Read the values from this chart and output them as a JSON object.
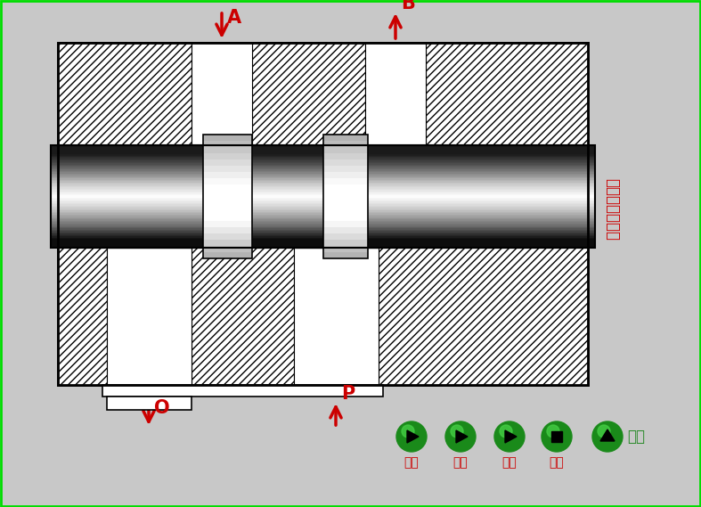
{
  "bg_color": "#c8c8c8",
  "outer_border_color": "#00dd00",
  "title_text": "三位四通换向阀",
  "title_color": "#cc0000",
  "arrow_color": "#cc0000",
  "button_labels": [
    "左位",
    "中位",
    "右位",
    "停止"
  ],
  "button_label_color": "#cc0000",
  "return_text": "返回",
  "return_color": "#228822"
}
